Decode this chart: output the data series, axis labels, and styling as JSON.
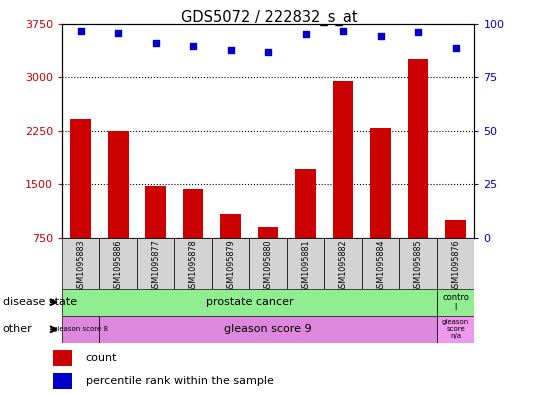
{
  "title": "GDS5072 / 222832_s_at",
  "samples": [
    "GSM1095883",
    "GSM1095886",
    "GSM1095877",
    "GSM1095878",
    "GSM1095879",
    "GSM1095880",
    "GSM1095881",
    "GSM1095882",
    "GSM1095884",
    "GSM1095885",
    "GSM1095876"
  ],
  "counts": [
    2420,
    2240,
    1480,
    1440,
    1080,
    900,
    1720,
    2950,
    2290,
    3250,
    1000
  ],
  "percentiles": [
    96.5,
    95.5,
    91,
    89.5,
    87.5,
    86.5,
    95,
    96.5,
    94,
    96,
    88.5
  ],
  "ylim_left": [
    750,
    3750
  ],
  "ylim_right": [
    0,
    100
  ],
  "yticks_left": [
    750,
    1500,
    2250,
    3000,
    3750
  ],
  "yticks_right": [
    0,
    25,
    50,
    75,
    100
  ],
  "bar_color": "#cc0000",
  "dot_color": "#0000cc",
  "bar_width": 0.55,
  "tick_label_color_left": "#cc0000",
  "tick_label_color_right": "#0000cc",
  "xticklabel_bg": "#d3d3d3",
  "prostate_color": "#90ee90",
  "control_color": "#90ee90",
  "gleason8_color": "#dd88dd",
  "gleason9_color": "#dd88dd",
  "gleasonna_color": "#ee99ee",
  "legend_count_label": "count",
  "legend_pct_label": "percentile rank within the sample"
}
